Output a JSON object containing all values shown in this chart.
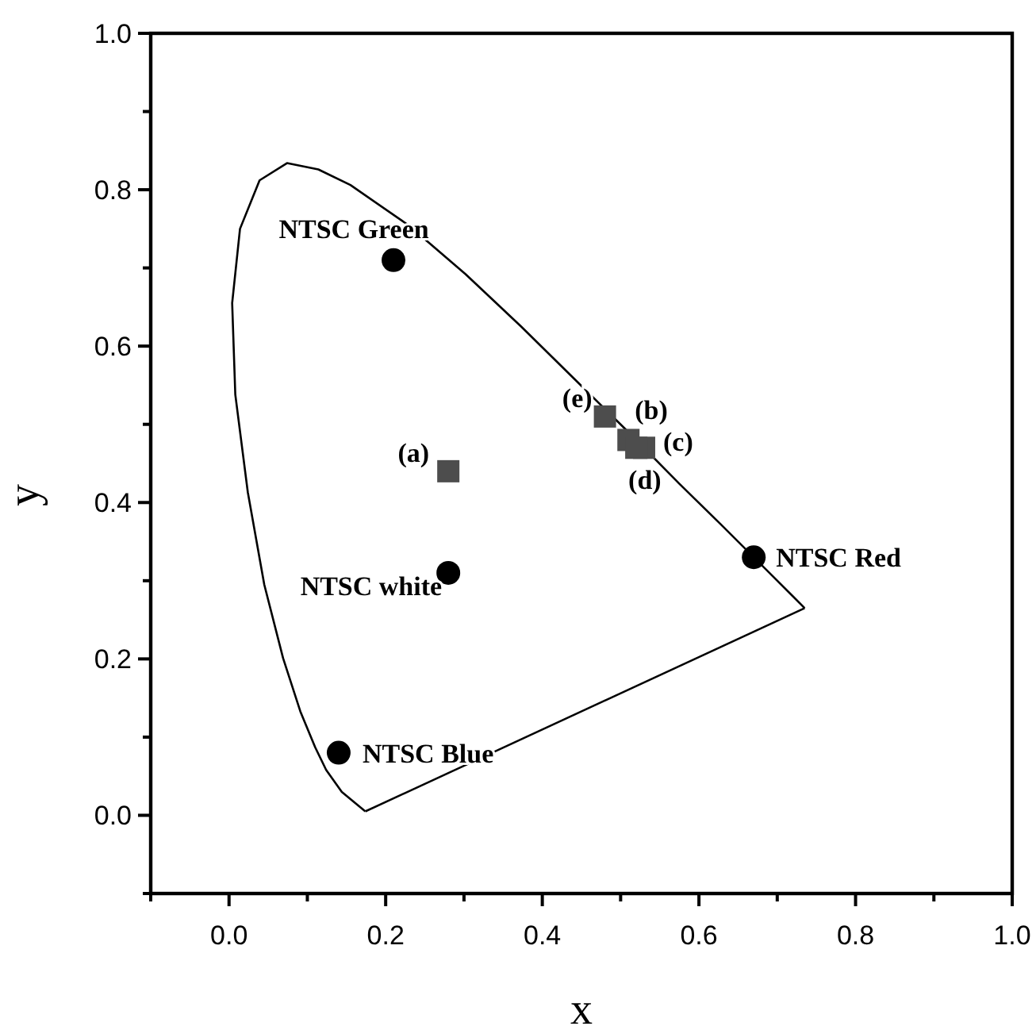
{
  "chart_data": {
    "type": "scatter",
    "xlabel": "x",
    "ylabel": "y",
    "xlim": [
      -0.1,
      1.0
    ],
    "ylim": [
      -0.1,
      1.0
    ],
    "xticks": [
      {
        "value": -0.1,
        "label": null
      },
      {
        "value": 0,
        "label": "0.0"
      },
      {
        "value": 0.1,
        "label": null
      },
      {
        "value": 0.2,
        "label": "0.2"
      },
      {
        "value": 0.3,
        "label": null
      },
      {
        "value": 0.4,
        "label": "0.4"
      },
      {
        "value": 0.5,
        "label": null
      },
      {
        "value": 0.6,
        "label": "0.6"
      },
      {
        "value": 0.7,
        "label": null
      },
      {
        "value": 0.8,
        "label": "0.8"
      },
      {
        "value": 0.9,
        "label": null
      },
      {
        "value": 1.0,
        "label": "1.0"
      }
    ],
    "yticks": [
      {
        "value": -0.1,
        "label": null
      },
      {
        "value": 0,
        "label": "0.0"
      },
      {
        "value": 0.1,
        "label": null
      },
      {
        "value": 0.2,
        "label": "0.2"
      },
      {
        "value": 0.3,
        "label": null
      },
      {
        "value": 0.4,
        "label": "0.4"
      },
      {
        "value": 0.5,
        "label": null
      },
      {
        "value": 0.6,
        "label": "0.6"
      },
      {
        "value": 0.7,
        "label": null
      },
      {
        "value": 0.8,
        "label": "0.8"
      },
      {
        "value": 0.9,
        "label": null
      },
      {
        "value": 1.0,
        "label": "1.0"
      }
    ],
    "grid": false,
    "series": [
      {
        "type": "line",
        "color": "#000000",
        "marker": "none",
        "line_style": "solid",
        "x": [
          0.174,
          0.144,
          0.124,
          0.11,
          0.091,
          0.069,
          0.045,
          0.024,
          0.008,
          0.004,
          0.014,
          0.039,
          0.074,
          0.114,
          0.155,
          0.23,
          0.302,
          0.373,
          0.444,
          0.513,
          0.575,
          0.627,
          0.692,
          0.719,
          0.735
        ],
        "values": [
          0.005,
          0.03,
          0.058,
          0.087,
          0.133,
          0.201,
          0.295,
          0.413,
          0.538,
          0.655,
          0.75,
          0.812,
          0.834,
          0.826,
          0.806,
          0.754,
          0.692,
          0.625,
          0.555,
          0.487,
          0.424,
          0.373,
          0.308,
          0.281,
          0.265
        ]
      },
      {
        "type": "line",
        "color": "#000000",
        "marker": "none",
        "line_style": "solid",
        "x": [
          0.735,
          0.174
        ],
        "values": [
          0.265,
          0.005
        ]
      },
      {
        "color": "#000000",
        "marker": "circle",
        "x": [
          0.21,
          0.67,
          0.14,
          0.28
        ],
        "values": [
          0.71,
          0.33,
          0.08,
          0.31
        ]
      },
      {
        "color": "#4d4d4d",
        "marker": "square",
        "x": [
          0.28,
          0.51,
          0.53,
          0.52,
          0.48
        ],
        "values": [
          0.44,
          0.48,
          0.47,
          0.47,
          0.51
        ]
      }
    ],
    "annotations": [
      {
        "text": "NTSC Green",
        "x": 0.21,
        "y": 0.71
      },
      {
        "text": "NTSC Red",
        "x": 0.67,
        "y": 0.33
      },
      {
        "text": "NTSC Blue",
        "x": 0.14,
        "y": 0.08
      },
      {
        "text": "NTSC white",
        "x": 0.28,
        "y": 0.31
      },
      {
        "text": "(a)",
        "x": 0.28,
        "y": 0.44
      },
      {
        "text": "(b)",
        "x": 0.51,
        "y": 0.48
      },
      {
        "text": "(c)",
        "x": 0.53,
        "y": 0.47
      },
      {
        "text": "(d)",
        "x": 0.52,
        "y": 0.47
      },
      {
        "text": "(e)",
        "x": 0.48,
        "y": 0.51
      }
    ]
  }
}
